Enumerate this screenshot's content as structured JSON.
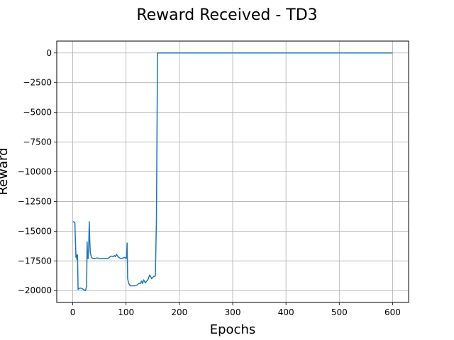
{
  "chart_data": {
    "type": "line",
    "title": "Reward Received - TD3",
    "xlabel": "Epochs",
    "ylabel": "Reward",
    "xlim": [
      -30,
      630
    ],
    "ylim": [
      -21000,
      1000
    ],
    "xticks": [
      0,
      100,
      200,
      300,
      400,
      500,
      600
    ],
    "xtick_labels": [
      "0",
      "100",
      "200",
      "300",
      "400",
      "500",
      "600"
    ],
    "yticks": [
      0,
      -2500,
      -5000,
      -7500,
      -10000,
      -12500,
      -15000,
      -17500,
      -20000
    ],
    "ytick_labels": [
      "0",
      "−2500",
      "−5000",
      "−7500",
      "−10000",
      "−12500",
      "−15000",
      "−17500",
      "−20000"
    ],
    "grid": true,
    "series": [
      {
        "color": "#1f77b4",
        "points": [
          [
            0,
            -14200
          ],
          [
            2,
            -14200
          ],
          [
            4,
            -14300
          ],
          [
            6,
            -17200
          ],
          [
            7,
            -17000
          ],
          [
            8,
            -17400
          ],
          [
            9,
            -17000
          ],
          [
            10,
            -19900
          ],
          [
            13,
            -19800
          ],
          [
            16,
            -19800
          ],
          [
            20,
            -19900
          ],
          [
            24,
            -20000
          ],
          [
            26,
            -19600
          ],
          [
            27,
            -15900
          ],
          [
            28,
            -17300
          ],
          [
            29,
            -17300
          ],
          [
            30,
            -16200
          ],
          [
            31,
            -14200
          ],
          [
            32,
            -15900
          ],
          [
            33,
            -16800
          ],
          [
            35,
            -17200
          ],
          [
            38,
            -17300
          ],
          [
            42,
            -17300
          ],
          [
            46,
            -17250
          ],
          [
            50,
            -17300
          ],
          [
            55,
            -17300
          ],
          [
            60,
            -17300
          ],
          [
            65,
            -17300
          ],
          [
            68,
            -17250
          ],
          [
            70,
            -17150
          ],
          [
            73,
            -17100
          ],
          [
            76,
            -17150
          ],
          [
            78,
            -17050
          ],
          [
            80,
            -17150
          ],
          [
            82,
            -16950
          ],
          [
            84,
            -17100
          ],
          [
            86,
            -17200
          ],
          [
            90,
            -17300
          ],
          [
            95,
            -17250
          ],
          [
            98,
            -17200
          ],
          [
            100,
            -17300
          ],
          [
            101,
            -17200
          ],
          [
            102,
            -16000
          ],
          [
            103,
            -19000
          ],
          [
            105,
            -19400
          ],
          [
            108,
            -19600
          ],
          [
            112,
            -19600
          ],
          [
            116,
            -19600
          ],
          [
            120,
            -19550
          ],
          [
            124,
            -19400
          ],
          [
            127,
            -19400
          ],
          [
            129,
            -19200
          ],
          [
            131,
            -19400
          ],
          [
            133,
            -19100
          ],
          [
            136,
            -19350
          ],
          [
            139,
            -19200
          ],
          [
            142,
            -19000
          ],
          [
            144,
            -18700
          ],
          [
            146,
            -18800
          ],
          [
            148,
            -19000
          ],
          [
            150,
            -18900
          ],
          [
            152,
            -18800
          ],
          [
            154,
            -18800
          ],
          [
            155,
            -18700
          ],
          [
            157,
            -14000
          ],
          [
            159,
            0
          ],
          [
            200,
            0
          ],
          [
            300,
            0
          ],
          [
            400,
            0
          ],
          [
            500,
            0
          ],
          [
            600,
            0
          ]
        ]
      }
    ]
  }
}
